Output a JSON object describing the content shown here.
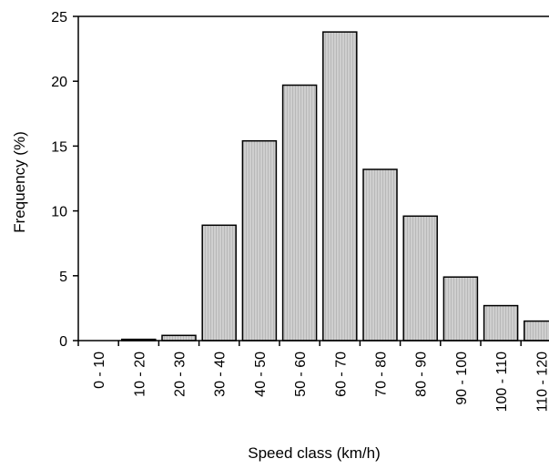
{
  "chart_data": {
    "type": "bar",
    "title": "",
    "xlabel": "Speed class (km/h)",
    "ylabel": "Frequency (%)",
    "ylim": [
      0,
      25
    ],
    "yticks": [
      0,
      5,
      10,
      15,
      20,
      25
    ],
    "grid": false,
    "legend": "none",
    "categories": [
      "0 - 10",
      "10 - 20",
      "20 - 30",
      "30 - 40",
      "40 - 50",
      "50 - 60",
      "60 - 70",
      "70 - 80",
      "80 - 90",
      "90 - 100",
      "100 - 110",
      "110 - 120"
    ],
    "values": [
      0.0,
      0.1,
      0.4,
      8.9,
      15.4,
      19.7,
      23.8,
      13.2,
      9.6,
      4.9,
      2.7,
      1.5
    ],
    "colors": {
      "bar_fill": "#c9c9c9",
      "bar_stroke": "#000000",
      "axis": "#000000"
    }
  }
}
